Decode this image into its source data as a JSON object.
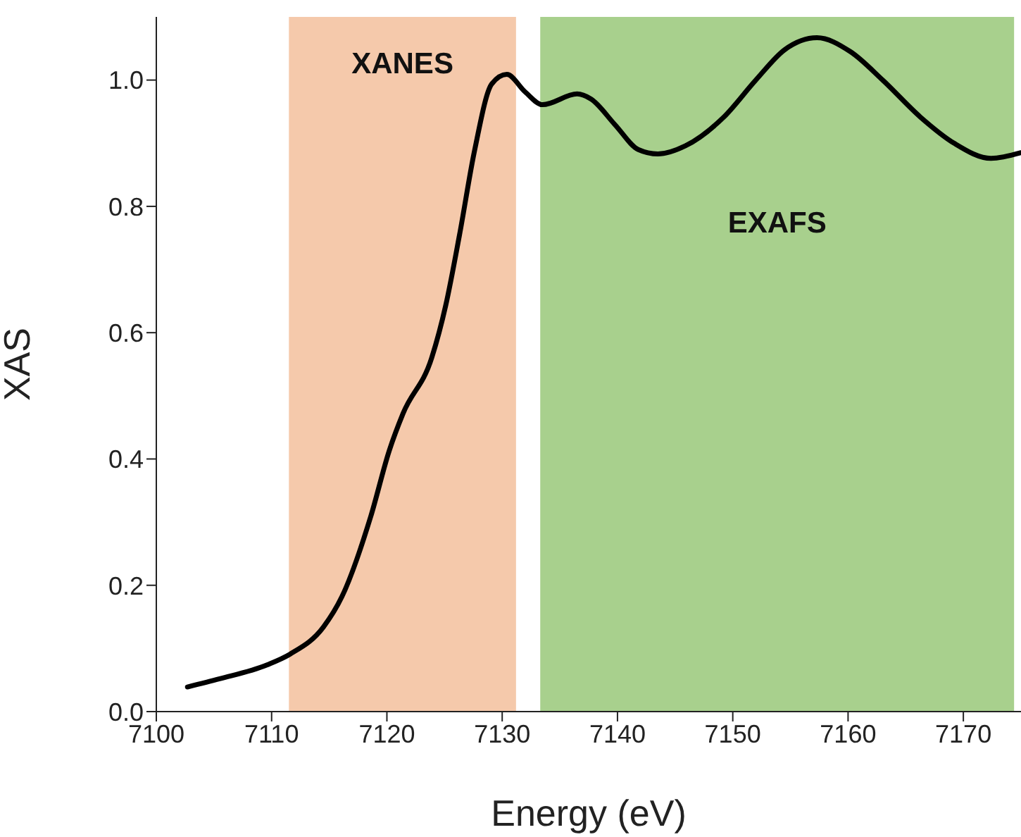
{
  "chart_data": {
    "type": "line",
    "xlabel": "Energy (eV)",
    "ylabel": "XAS",
    "xlim": [
      7100,
      7175
    ],
    "xticks": [
      7100,
      7110,
      7120,
      7130,
      7140,
      7150,
      7160,
      7170
    ],
    "ylim": [
      0,
      1.1
    ],
    "yticks": [
      {
        "value": 0,
        "label": "0.0"
      },
      {
        "value": 0.2,
        "label": "0.2"
      },
      {
        "value": 0.4,
        "label": "0.4"
      },
      {
        "value": 0.6,
        "label": "0.6"
      },
      {
        "value": 0.8,
        "label": "0.8"
      },
      {
        "value": 1,
        "label": "1.0"
      }
    ],
    "grid": false,
    "legend": false,
    "marker": "none",
    "line_style": "solid",
    "series": [
      {
        "color": "#000000",
        "x": [
          7102.7,
          7105.5,
          7109.6,
          7111.6,
          7114.5,
          7116.1,
          7118.6,
          7120.2,
          7121.4,
          7123.9,
          7125.1,
          7126.3,
          7127.6,
          7129.1,
          7130.4,
          7132.0,
          7133.5,
          7136.5,
          7137.7,
          7139.8,
          7141.8,
          7143.5,
          7145.9,
          7149.2,
          7152.0,
          7154.5,
          7157.3,
          7160.2,
          7163.0,
          7166.3,
          7169.2,
          7172.4,
          7175
        ],
        "values": [
          0.039,
          0.052,
          0.074,
          0.091,
          0.134,
          0.182,
          0.309,
          0.413,
          0.472,
          0.561,
          0.643,
          0.755,
          0.888,
          0.994,
          1.009,
          0.981,
          0.961,
          0.978,
          0.97,
          0.929,
          0.89,
          0.883,
          0.896,
          0.941,
          1.0,
          1.048,
          1.067,
          1.045,
          1.0,
          0.941,
          0.9,
          0.876,
          0.885
        ]
      }
    ],
    "bands": [
      {
        "axis": "x",
        "from": 7111.5,
        "to": 7131.2,
        "label": "XANES",
        "color": "#f5c9ab"
      },
      {
        "axis": "x",
        "from": 7133.3,
        "to": 7174.4,
        "label": "EXAFS",
        "color": "#a8d08d"
      }
    ]
  }
}
